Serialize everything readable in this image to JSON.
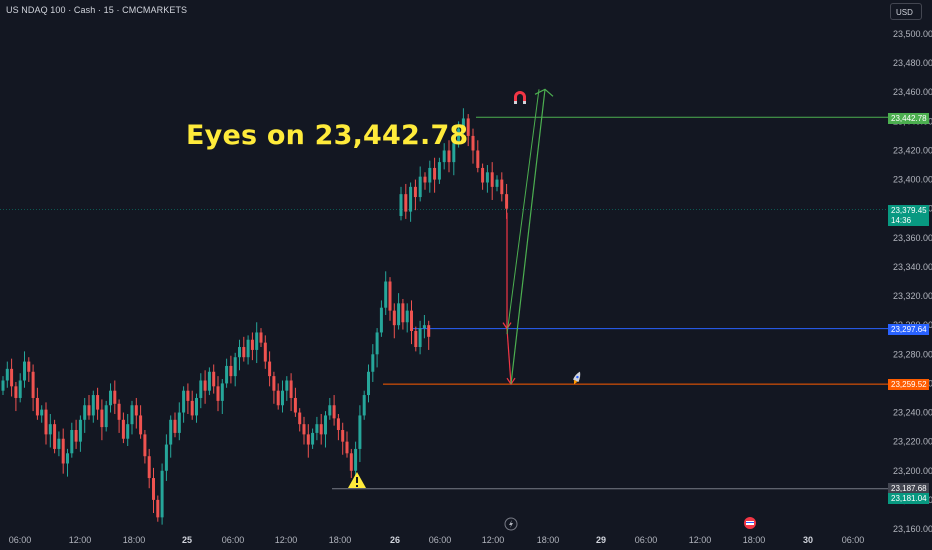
{
  "header": {
    "symbol_title": "US NDAQ 100 · Cash · 15 · CMCMARKETS",
    "currency_button": "USD"
  },
  "annotation": {
    "text": "Eyes on 23,442.78"
  },
  "price_tags": {
    "target": "23,442.78",
    "current": "23,379.45",
    "countdown": "14:36",
    "blue_level": "23,297.64",
    "orange_level": "23,259.52",
    "grey_level": "23,187.68",
    "green_low": "23,181.04"
  },
  "colors": {
    "background": "#131722",
    "up_candle": "#26a69a",
    "down_candle": "#ef5350",
    "target_line": "#4caf50",
    "blue_line": "#2962ff",
    "orange_line": "#ff5d00",
    "grey_line": "#787b86",
    "current_price": "#089981",
    "annotation": "#ffeb3b"
  },
  "icons": [
    "magnet-icon",
    "warning-icon",
    "rocket-icon",
    "lightning-icon",
    "flag-event-icon"
  ],
  "chart_data": {
    "type": "candlestick",
    "title": "US NDAQ 100 · Cash · 15 · CMCMARKETS",
    "ylim": [
      23150,
      23520
    ],
    "y_ticks": [
      23160,
      23180,
      23200,
      23220,
      23240,
      23260,
      23280,
      23300,
      23320,
      23340,
      23360,
      23380,
      23400,
      23420,
      23440,
      23460,
      23480,
      23500
    ],
    "x_ticks": [
      "06:00",
      "12:00",
      "18:00",
      "25",
      "06:00",
      "12:00",
      "18:00",
      "26",
      "06:00",
      "12:00",
      "18:00",
      "29",
      "06:00",
      "12:00",
      "18:00",
      "30",
      "06:00"
    ],
    "bold_x_ticks": [
      "25",
      "26",
      "29",
      "30"
    ],
    "horizontal_levels": [
      {
        "name": "target",
        "value": 23442.78
      },
      {
        "name": "current",
        "value": 23379.45
      },
      {
        "name": "blue_level",
        "value": 23297.64
      },
      {
        "name": "orange_level",
        "value": 23259.52
      },
      {
        "name": "grey_level",
        "value": 23187.68
      }
    ],
    "path_points": [
      23380,
      23297.64,
      23259.52,
      23462
    ],
    "price_path": [
      [
        23255,
        23262
      ],
      [
        23262,
        23270
      ],
      [
        23270,
        23258
      ],
      [
        23258,
        23250
      ],
      [
        23250,
        23262
      ],
      [
        23262,
        23275
      ],
      [
        23275,
        23268
      ],
      [
        23268,
        23250
      ],
      [
        23250,
        23238
      ],
      [
        23238,
        23242
      ],
      [
        23242,
        23225
      ],
      [
        23225,
        23232
      ],
      [
        23232,
        23215
      ],
      [
        23215,
        23222
      ],
      [
        23222,
        23205
      ],
      [
        23205,
        23212
      ],
      [
        23212,
        23228
      ],
      [
        23228,
        23220
      ],
      [
        23220,
        23235
      ],
      [
        23235,
        23245
      ],
      [
        23245,
        23238
      ],
      [
        23238,
        23252
      ],
      [
        23252,
        23242
      ],
      [
        23242,
        23230
      ],
      [
        23230,
        23245
      ],
      [
        23245,
        23255
      ],
      [
        23255,
        23246
      ],
      [
        23246,
        23235
      ],
      [
        23235,
        23222
      ],
      [
        23222,
        23232
      ],
      [
        23232,
        23245
      ],
      [
        23245,
        23238
      ],
      [
        23238,
        23225
      ],
      [
        23225,
        23210
      ],
      [
        23210,
        23195
      ],
      [
        23195,
        23180
      ],
      [
        23180,
        23168
      ],
      [
        23168,
        23200
      ],
      [
        23200,
        23218
      ],
      [
        23218,
        23235
      ],
      [
        23235,
        23226
      ],
      [
        23226,
        23240
      ],
      [
        23240,
        23255
      ],
      [
        23255,
        23248
      ],
      [
        23248,
        23238
      ],
      [
        23238,
        23250
      ],
      [
        23250,
        23262
      ],
      [
        23262,
        23255
      ],
      [
        23255,
        23268
      ],
      [
        23268,
        23258
      ],
      [
        23258,
        23248
      ],
      [
        23248,
        23260
      ],
      [
        23260,
        23272
      ],
      [
        23272,
        23265
      ],
      [
        23265,
        23278
      ],
      [
        23278,
        23285
      ],
      [
        23285,
        23278
      ],
      [
        23278,
        23290
      ],
      [
        23290,
        23283
      ],
      [
        23283,
        23295
      ],
      [
        23295,
        23288
      ],
      [
        23288,
        23275
      ],
      [
        23275,
        23265
      ],
      [
        23265,
        23255
      ],
      [
        23255,
        23245
      ],
      [
        23245,
        23255
      ],
      [
        23255,
        23262
      ],
      [
        23262,
        23250
      ],
      [
        23250,
        23240
      ],
      [
        23240,
        23232
      ],
      [
        23232,
        23225
      ],
      [
        23225,
        23218
      ],
      [
        23218,
        23226
      ],
      [
        23226,
        23232
      ],
      [
        23232,
        23225
      ],
      [
        23225,
        23238
      ],
      [
        23238,
        23245
      ],
      [
        23245,
        23236
      ],
      [
        23236,
        23228
      ],
      [
        23228,
        23220
      ],
      [
        23220,
        23212
      ],
      [
        23212,
        23200
      ],
      [
        23200,
        23215
      ],
      [
        23215,
        23238
      ],
      [
        23238,
        23252
      ],
      [
        23252,
        23268
      ],
      [
        23268,
        23280
      ],
      [
        23280,
        23295
      ],
      [
        23295,
        23312
      ],
      [
        23312,
        23330
      ],
      [
        23330,
        23310
      ],
      [
        23310,
        23300
      ],
      [
        23300,
        23315
      ],
      [
        23315,
        23302
      ],
      [
        23302,
        23310
      ],
      [
        23310,
        23296
      ],
      [
        23296,
        23285
      ],
      [
        23285,
        23298
      ],
      [
        23298,
        23300
      ],
      [
        23300,
        23292
      ],
      [
        23375,
        23390
      ],
      [
        23390,
        23378
      ],
      [
        23378,
        23395
      ],
      [
        23395,
        23388
      ],
      [
        23388,
        23402
      ],
      [
        23402,
        23398
      ],
      [
        23398,
        23408
      ],
      [
        23408,
        23400
      ],
      [
        23400,
        23412
      ],
      [
        23412,
        23420
      ],
      [
        23420,
        23412
      ],
      [
        23412,
        23425
      ],
      [
        23425,
        23435
      ],
      [
        23435,
        23442
      ],
      [
        23442,
        23430
      ],
      [
        23430,
        23420
      ],
      [
        23420,
        23408
      ],
      [
        23408,
        23398
      ],
      [
        23398,
        23405
      ],
      [
        23405,
        23395
      ],
      [
        23395,
        23400
      ],
      [
        23400,
        23390
      ],
      [
        23390,
        23380
      ]
    ]
  }
}
